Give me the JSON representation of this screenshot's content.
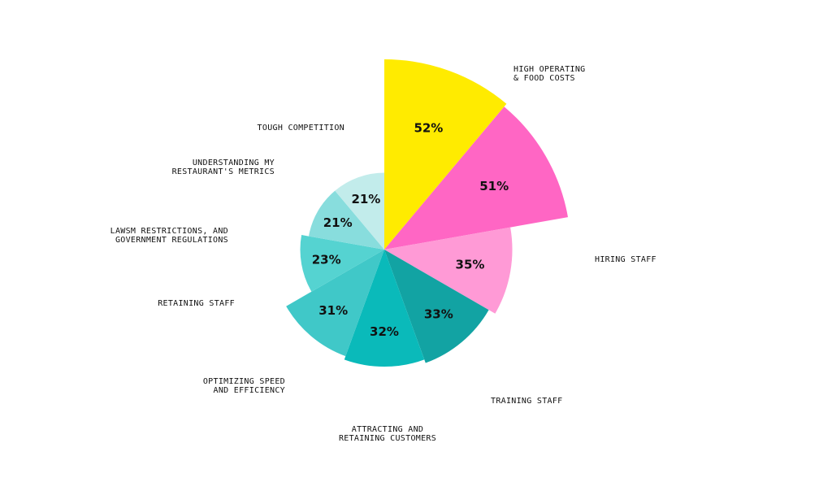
{
  "chart_data": {
    "type": "pie",
    "variant": "polar-area",
    "categories": [
      [
        "HIGH OPERATING",
        "& FOOD COSTS"
      ],
      [
        "HIRING STAFF"
      ],
      [
        "TRAINING STAFF"
      ],
      [
        "ATTRACTING AND",
        "RETAINING CUSTOMERS"
      ],
      [
        "OPTIMIZING SPEED",
        "AND EFFICIENCY"
      ],
      [
        "RETAINING STAFF"
      ],
      [
        "LAWSM RESTRICTIONS, AND",
        "GOVERNMENT REGULATIONS"
      ],
      [
        "UNDERSTANDING MY",
        "RESTAURANT'S METRICS"
      ],
      [
        "TOUGH COMPETITION"
      ]
    ],
    "values": [
      52,
      51,
      35,
      33,
      32,
      31,
      23,
      21,
      21
    ],
    "value_labels": [
      "52%",
      "51%",
      "35%",
      "33%",
      "32%",
      "31%",
      "23%",
      "21%",
      "21%"
    ],
    "colors": [
      "#FFEB00",
      "#FF66C4",
      "#FF9AD6",
      "#12A3A3",
      "#0ABABA",
      "#40C8C8",
      "#55D3D1",
      "#88DDDD",
      "#C2ECEB"
    ],
    "legend": "none"
  }
}
